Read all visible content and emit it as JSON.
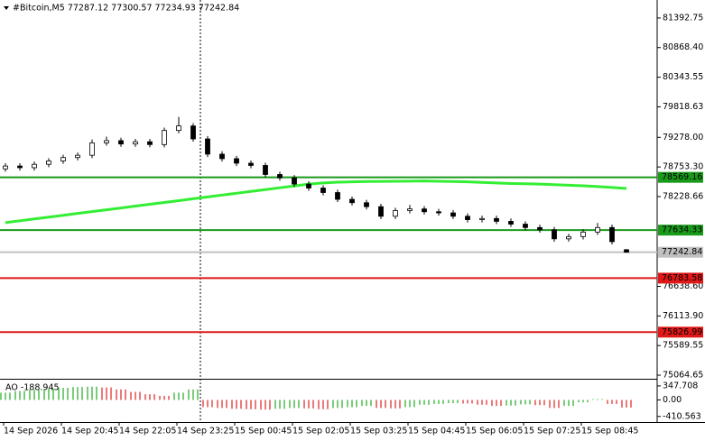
{
  "chart_data": [
    {
      "type": "candlestick",
      "title": "#Bitcoin,M5  77287.12 77300.57 77234.93 77242.84",
      "categories": [
        "14 Sep 2026",
        null,
        null,
        null,
        "14 Sep 20:45",
        null,
        null,
        null,
        "14 Sep 22:05",
        null,
        null,
        null,
        "14 Sep 23:25",
        null,
        null,
        null,
        "15 Sep 00:45",
        null,
        null,
        null,
        "15 Sep 02:05",
        null,
        null,
        null,
        "15 Sep 03:25",
        null,
        null,
        null,
        "15 Sep 04:45",
        null,
        null,
        null,
        "15 Sep 06:05",
        null,
        null,
        null,
        "15 Sep 07:25",
        null,
        null,
        null,
        "15 Sep 08:45",
        null,
        null,
        null
      ],
      "open": [
        78720,
        78770,
        78740,
        78800,
        78860,
        78920,
        78960,
        79180,
        79220,
        79160,
        79200,
        79150,
        79400,
        79480,
        79250,
        78980,
        78900,
        78820,
        78780,
        78620,
        78560,
        78450,
        78380,
        78300,
        78180,
        78120,
        78050,
        77880,
        77980,
        78010,
        77960,
        77940,
        77880,
        77820,
        77840,
        77790,
        77740,
        77680,
        77640,
        77480,
        77520,
        77600,
        77680,
        77287.12
      ],
      "high": [
        78820,
        78820,
        78850,
        78910,
        78970,
        79010,
        79240,
        79290,
        79270,
        79250,
        79250,
        79450,
        79640,
        79530,
        79300,
        79030,
        78950,
        78870,
        78830,
        78670,
        78610,
        78500,
        78430,
        78350,
        78230,
        78170,
        78100,
        78030,
        78080,
        78060,
        78010,
        77990,
        77930,
        77890,
        77890,
        77840,
        77790,
        77730,
        77690,
        77570,
        77650,
        77760,
        77730,
        77300.57
      ],
      "low": [
        78670,
        78690,
        78690,
        78750,
        78810,
        78870,
        78910,
        79130,
        79110,
        79110,
        79100,
        79100,
        79350,
        79200,
        78930,
        78850,
        78770,
        78730,
        78570,
        78510,
        78400,
        78330,
        78250,
        78130,
        78070,
        78000,
        77830,
        77830,
        77930,
        77910,
        77890,
        77830,
        77770,
        77770,
        77740,
        77690,
        77630,
        77590,
        77430,
        77430,
        77470,
        77550,
        77380,
        77234.93
      ],
      "close": [
        78770,
        78740,
        78800,
        78860,
        78920,
        78960,
        79180,
        79220,
        79160,
        79200,
        79150,
        79400,
        79480,
        79250,
        78980,
        78900,
        78820,
        78780,
        78620,
        78560,
        78450,
        78380,
        78300,
        78180,
        78120,
        78050,
        77880,
        77980,
        78010,
        77960,
        77940,
        77880,
        77820,
        77840,
        77790,
        77740,
        77680,
        77640,
        77480,
        77520,
        77600,
        77680,
        77430,
        77242.84
      ],
      "ma": {
        "color": "#33ee33",
        "values": [
          77767,
          77800,
          77832,
          77865,
          77897,
          77930,
          77962,
          77995,
          78027,
          78060,
          78092,
          78125,
          78157,
          78190,
          78222,
          78255,
          78287,
          78320,
          78352,
          78385,
          78417,
          78450,
          78470,
          78483,
          78490,
          78495,
          78498,
          78500,
          78502,
          78505,
          78500,
          78495,
          78490,
          78480,
          78470,
          78460,
          78455,
          78450,
          78440,
          78430,
          78420,
          78405,
          78390,
          78372
        ]
      },
      "levels": [
        {
          "value": 78569.16,
          "color": "#1a9a1a"
        },
        {
          "value": 77634.33,
          "color": "#1a9a1a"
        },
        {
          "value": 77242.84,
          "color": "#c0c0c0"
        },
        {
          "value": 76783.58,
          "color": "#e01818"
        },
        {
          "value": 75826.99,
          "color": "#e01818"
        }
      ],
      "ylim": [
        75001,
        81711
      ],
      "yticks": [
        81392.75,
        {
          "value": 80868.4,
          "label": "80868.40"
        },
        80343.55,
        79818.63,
        {
          "value": 79278,
          "label": "79278.00"
        },
        {
          "value": 78753.3,
          "label": "78753.30"
        },
        78228.66,
        {
          "value": 76638.6,
          "label": "76638.60"
        },
        {
          "value": 76113.9,
          "label": "76113.90"
        },
        75589.55,
        75064.65
      ]
    },
    {
      "type": "bar",
      "title": "AO -188.945",
      "values": [
        180,
        220,
        250,
        280,
        300,
        320,
        330,
        310,
        260,
        200,
        140,
        100,
        180,
        260,
        -180,
        -200,
        -220,
        -230,
        -240,
        -220,
        -200,
        -210,
        -230,
        -200,
        -180,
        -150,
        -200,
        -210,
        -180,
        -120,
        -100,
        -80,
        -90,
        -120,
        -150,
        -140,
        -110,
        -130,
        -200,
        -150,
        -60,
        20,
        -100,
        -188.945
      ],
      "up_color": "#22aa22",
      "down_color": "#dd2222",
      "ylim": [
        -550,
        480
      ],
      "yticks": [
        347.708,
        {
          "value": 0,
          "label": "0.00"
        },
        -410.563
      ]
    }
  ]
}
